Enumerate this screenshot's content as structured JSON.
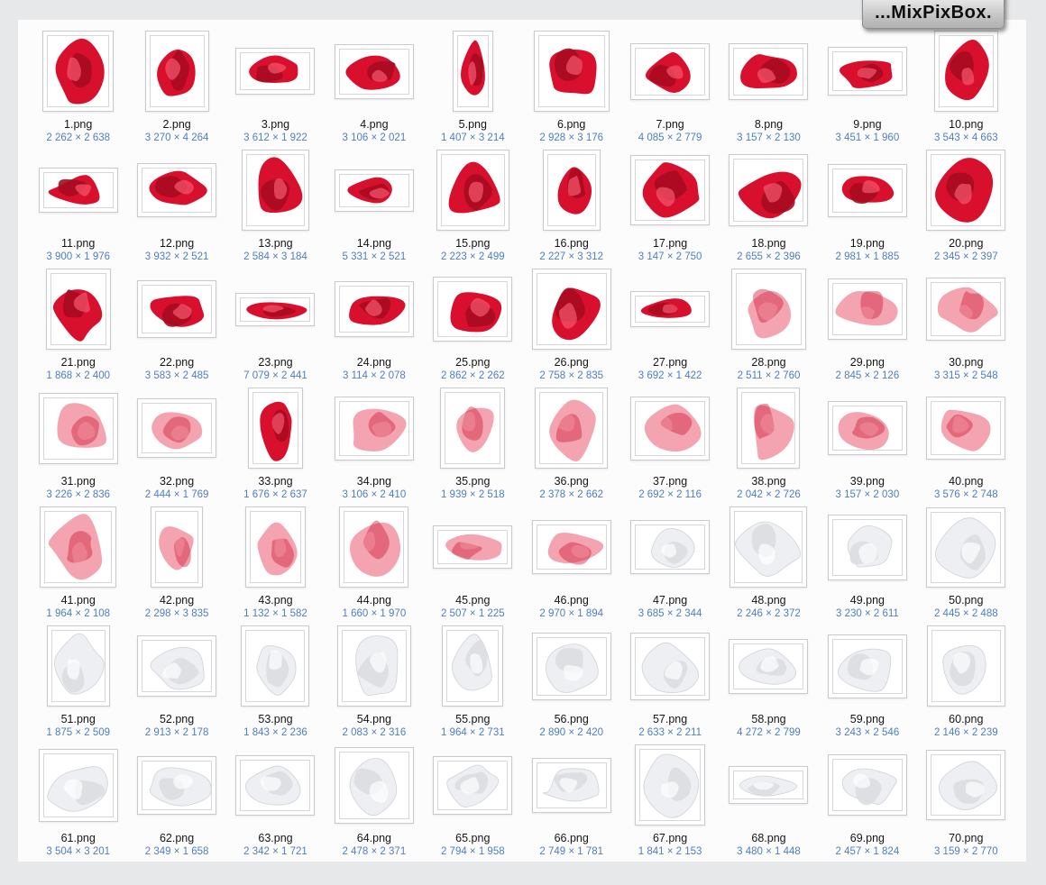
{
  "logo": {
    "text": "...MixPixBox."
  },
  "colors": {
    "page_background": "#e7e8ea",
    "panel_background": "#fcfcfd",
    "filename_text": "#151517",
    "dimensions_text": "#4d7ec0",
    "red_fabric": "#d8102e",
    "sheer_red_fabric": "#e84a62",
    "white_fabric": "#edeff2"
  },
  "items": [
    {
      "name": "1.png",
      "dimensions": "2 262 × 2 638",
      "fabric": "red"
    },
    {
      "name": "2.png",
      "dimensions": "3 270 × 4 264",
      "fabric": "red"
    },
    {
      "name": "3.png",
      "dimensions": "3 612 × 1 922",
      "fabric": "red"
    },
    {
      "name": "4.png",
      "dimensions": "3 106 × 2 021",
      "fabric": "red"
    },
    {
      "name": "5.png",
      "dimensions": "1 407 × 3 214",
      "fabric": "red"
    },
    {
      "name": "6.png",
      "dimensions": "2 928 × 3 176",
      "fabric": "red"
    },
    {
      "name": "7.png",
      "dimensions": "4 085 × 2 779",
      "fabric": "red"
    },
    {
      "name": "8.png",
      "dimensions": "3 157 × 2 130",
      "fabric": "red"
    },
    {
      "name": "9.png",
      "dimensions": "3 451 × 1 960",
      "fabric": "red"
    },
    {
      "name": "10.png",
      "dimensions": "3 543 × 4 663",
      "fabric": "red"
    },
    {
      "name": "11.png",
      "dimensions": "3 900 × 1 976",
      "fabric": "red"
    },
    {
      "name": "12.png",
      "dimensions": "3 932 × 2 521",
      "fabric": "red"
    },
    {
      "name": "13.png",
      "dimensions": "2 584 × 3 184",
      "fabric": "red"
    },
    {
      "name": "14.png",
      "dimensions": "5 331 × 2 521",
      "fabric": "red"
    },
    {
      "name": "15.png",
      "dimensions": "2 223 × 2 499",
      "fabric": "red"
    },
    {
      "name": "16.png",
      "dimensions": "2 227 × 3 312",
      "fabric": "red"
    },
    {
      "name": "17.png",
      "dimensions": "3 147 × 2 750",
      "fabric": "red"
    },
    {
      "name": "18.png",
      "dimensions": "2 655 × 2 396",
      "fabric": "red"
    },
    {
      "name": "19.png",
      "dimensions": "2 981 × 1 885",
      "fabric": "red"
    },
    {
      "name": "20.png",
      "dimensions": "2 345 × 2 397",
      "fabric": "red"
    },
    {
      "name": "21.png",
      "dimensions": "1 868 × 2 400",
      "fabric": "red"
    },
    {
      "name": "22.png",
      "dimensions": "3 583 × 2 485",
      "fabric": "red"
    },
    {
      "name": "23.png",
      "dimensions": "7 079 × 2 441",
      "fabric": "red"
    },
    {
      "name": "24.png",
      "dimensions": "3 114 × 2 078",
      "fabric": "red"
    },
    {
      "name": "25.png",
      "dimensions": "2 862 × 2 262",
      "fabric": "red"
    },
    {
      "name": "26.png",
      "dimensions": "2 758 × 2 835",
      "fabric": "red"
    },
    {
      "name": "27.png",
      "dimensions": "3 692 × 1 422",
      "fabric": "red"
    },
    {
      "name": "28.png",
      "dimensions": "2 511 × 2 760",
      "fabric": "sheer-red"
    },
    {
      "name": "29.png",
      "dimensions": "2 845 × 2 126",
      "fabric": "sheer-red"
    },
    {
      "name": "30.png",
      "dimensions": "3 315 × 2 548",
      "fabric": "sheer-red"
    },
    {
      "name": "31.png",
      "dimensions": "3 226 × 2 836",
      "fabric": "sheer-red"
    },
    {
      "name": "32.png",
      "dimensions": "2 444 × 1 769",
      "fabric": "sheer-red"
    },
    {
      "name": "33.png",
      "dimensions": "1 676 × 2 637",
      "fabric": "red"
    },
    {
      "name": "34.png",
      "dimensions": "3 106 × 2 410",
      "fabric": "sheer-red"
    },
    {
      "name": "35.png",
      "dimensions": "1 939 × 2 518",
      "fabric": "sheer-red"
    },
    {
      "name": "36.png",
      "dimensions": "2 378 × 2 662",
      "fabric": "sheer-red"
    },
    {
      "name": "37.png",
      "dimensions": "2 692 × 2 116",
      "fabric": "sheer-red"
    },
    {
      "name": "38.png",
      "dimensions": "2 042 × 2 726",
      "fabric": "sheer-red"
    },
    {
      "name": "39.png",
      "dimensions": "3 157 × 2 030",
      "fabric": "sheer-red"
    },
    {
      "name": "40.png",
      "dimensions": "3 576 × 2 748",
      "fabric": "sheer-red"
    },
    {
      "name": "41.png",
      "dimensions": "1 964 × 2 108",
      "fabric": "sheer-red"
    },
    {
      "name": "42.png",
      "dimensions": "2 298 × 3 835",
      "fabric": "sheer-red"
    },
    {
      "name": "43.png",
      "dimensions": "1 132 × 1 582",
      "fabric": "sheer-red"
    },
    {
      "name": "44.png",
      "dimensions": "1 660 × 1 970",
      "fabric": "sheer-red"
    },
    {
      "name": "45.png",
      "dimensions": "2 507 × 1 225",
      "fabric": "sheer-red"
    },
    {
      "name": "46.png",
      "dimensions": "2 970 × 1 894",
      "fabric": "sheer-red"
    },
    {
      "name": "47.png",
      "dimensions": "3 685 × 2 344",
      "fabric": "white"
    },
    {
      "name": "48.png",
      "dimensions": "2 246 × 2 372",
      "fabric": "white"
    },
    {
      "name": "49.png",
      "dimensions": "3 230 × 2 611",
      "fabric": "white"
    },
    {
      "name": "50.png",
      "dimensions": "2 445 × 2 488",
      "fabric": "white"
    },
    {
      "name": "51.png",
      "dimensions": "1 875 × 2 509",
      "fabric": "white"
    },
    {
      "name": "52.png",
      "dimensions": "2 913 × 2 178",
      "fabric": "white"
    },
    {
      "name": "53.png",
      "dimensions": "1 843 × 2 236",
      "fabric": "white"
    },
    {
      "name": "54.png",
      "dimensions": "2 083 × 2 316",
      "fabric": "white"
    },
    {
      "name": "55.png",
      "dimensions": "1 964 × 2 731",
      "fabric": "white"
    },
    {
      "name": "56.png",
      "dimensions": "2 890 × 2 420",
      "fabric": "white"
    },
    {
      "name": "57.png",
      "dimensions": "2 633 × 2 211",
      "fabric": "white"
    },
    {
      "name": "58.png",
      "dimensions": "4 272 × 2 799",
      "fabric": "white"
    },
    {
      "name": "59.png",
      "dimensions": "3 243 × 2 546",
      "fabric": "white"
    },
    {
      "name": "60.png",
      "dimensions": "2 146 × 2 239",
      "fabric": "white"
    },
    {
      "name": "61.png",
      "dimensions": "3 504 × 3 201",
      "fabric": "white"
    },
    {
      "name": "62.png",
      "dimensions": "2 349 × 1 658",
      "fabric": "white"
    },
    {
      "name": "63.png",
      "dimensions": "2 342 × 1 721",
      "fabric": "white"
    },
    {
      "name": "64.png",
      "dimensions": "2 478 × 2 371",
      "fabric": "white"
    },
    {
      "name": "65.png",
      "dimensions": "2 794 × 1 958",
      "fabric": "white"
    },
    {
      "name": "66.png",
      "dimensions": "2 749 × 1 781",
      "fabric": "white"
    },
    {
      "name": "67.png",
      "dimensions": "1 841 × 2 153",
      "fabric": "white"
    },
    {
      "name": "68.png",
      "dimensions": "3 480 × 1 448",
      "fabric": "white"
    },
    {
      "name": "69.png",
      "dimensions": "2 457 × 1 824",
      "fabric": "white"
    },
    {
      "name": "70.png",
      "dimensions": "3 159 × 2 770",
      "fabric": "white"
    }
  ]
}
